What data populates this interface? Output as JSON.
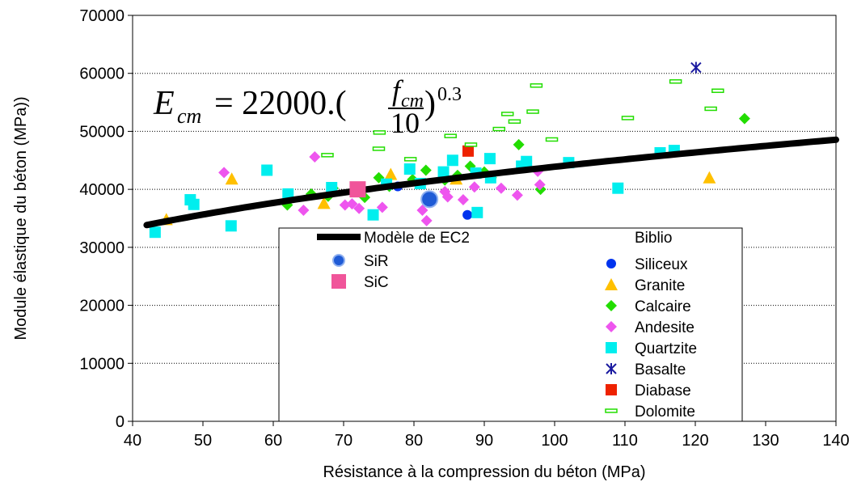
{
  "chart_data": {
    "type": "scatter",
    "xlabel": "Résistance à la compression du béton (MPa)",
    "ylabel": "Module élastique du béton (MPa))",
    "xlim": [
      40,
      140
    ],
    "ylim": [
      0,
      70000
    ],
    "xticks": [
      40,
      50,
      60,
      70,
      80,
      90,
      100,
      110,
      120,
      130,
      140
    ],
    "yticks": [
      0,
      10000,
      20000,
      30000,
      40000,
      50000,
      60000,
      70000
    ],
    "grid": "horizontal dotted",
    "formula": {
      "lhs": "E",
      "lhs_sub": "cm",
      "eq": "= 22000.(",
      "num": "f",
      "num_sub": "cm",
      "den": "10",
      "close": ")",
      "exp": "0.3"
    },
    "legend": {
      "placement": "bottom-center",
      "left_heading": "Modèle de EC2",
      "right_heading": "Biblio"
    },
    "model": {
      "name": "Modèle de EC2",
      "x_range": [
        42,
        140
      ],
      "coef": 22000,
      "exponent": 0.3,
      "color": "#000000"
    },
    "series": [
      {
        "name": "SiR",
        "marker": "circle-big",
        "color": "#1f5bd6",
        "points": [
          [
            82.2,
            38300
          ]
        ]
      },
      {
        "name": "SiC",
        "marker": "square-big",
        "color": "#f0559a",
        "points": [
          [
            72,
            40000
          ]
        ]
      },
      {
        "name": "Siliceux",
        "marker": "circle",
        "color": "#0033ee",
        "points": [
          [
            77.7,
            40500
          ],
          [
            87.6,
            35600
          ]
        ]
      },
      {
        "name": "Granite",
        "marker": "triangle",
        "color": "#ffc000",
        "points": [
          [
            44.8,
            34800
          ],
          [
            54.1,
            41800
          ],
          [
            67.2,
            37600
          ],
          [
            76.7,
            42600
          ],
          [
            86,
            41800
          ],
          [
            122,
            42000
          ]
        ]
      },
      {
        "name": "Calcaire",
        "marker": "diamond",
        "color": "#22dd00",
        "points": [
          [
            62,
            37300
          ],
          [
            65.4,
            39200
          ],
          [
            67.8,
            38800
          ],
          [
            68.5,
            40200
          ],
          [
            73,
            38600
          ],
          [
            75,
            42000
          ],
          [
            76.5,
            40500
          ],
          [
            79.8,
            41700
          ],
          [
            81.7,
            43300
          ],
          [
            84.4,
            41600
          ],
          [
            86.2,
            42400
          ],
          [
            88,
            44000
          ],
          [
            90,
            43000
          ],
          [
            91,
            42000
          ],
          [
            94.9,
            47700
          ],
          [
            98,
            40000
          ],
          [
            127,
            52200
          ]
        ]
      },
      {
        "name": "Andesite",
        "marker": "diamond",
        "color": "#ee55ee",
        "points": [
          [
            53,
            42900
          ],
          [
            64.3,
            36400
          ],
          [
            65.9,
            45600
          ],
          [
            70.2,
            37300
          ],
          [
            71.2,
            37500
          ],
          [
            72.2,
            36700
          ],
          [
            75.5,
            36900
          ],
          [
            81.2,
            36400
          ],
          [
            81.8,
            34600
          ],
          [
            84.4,
            39600
          ],
          [
            84.8,
            38700
          ],
          [
            87,
            38200
          ],
          [
            88.6,
            40400
          ],
          [
            92.4,
            40200
          ],
          [
            94.7,
            39000
          ],
          [
            97.6,
            43100
          ],
          [
            97.9,
            40800
          ]
        ]
      },
      {
        "name": "Quartzite",
        "marker": "square",
        "color": "#00eeee",
        "points": [
          [
            43.2,
            32600
          ],
          [
            48.2,
            38200
          ],
          [
            48.7,
            37400
          ],
          [
            54,
            33700
          ],
          [
            59.1,
            43300
          ],
          [
            62.1,
            39200
          ],
          [
            68.3,
            40300
          ],
          [
            74.2,
            35600
          ],
          [
            76.1,
            40900
          ],
          [
            79.4,
            43500
          ],
          [
            80.9,
            41000
          ],
          [
            84.2,
            43000
          ],
          [
            85.5,
            45000
          ],
          [
            88.8,
            42800
          ],
          [
            89,
            36000
          ],
          [
            90.8,
            45300
          ],
          [
            90.9,
            42000
          ],
          [
            95.3,
            44000
          ],
          [
            96,
            44800
          ],
          [
            102,
            44600
          ],
          [
            109,
            40200
          ],
          [
            115,
            46300
          ],
          [
            117,
            46700
          ]
        ]
      },
      {
        "name": "Basalte",
        "marker": "asterisk",
        "color": "#1a1aa0",
        "points": [
          [
            120.1,
            61000
          ]
        ]
      },
      {
        "name": "Diabase",
        "marker": "square",
        "color": "#ee2200",
        "points": [
          [
            87.7,
            46600
          ]
        ]
      },
      {
        "name": "Dolomite",
        "marker": "dash",
        "color": "#22dd00",
        "points": [
          [
            67.7,
            45900
          ],
          [
            75,
            47000
          ],
          [
            75.1,
            49800
          ],
          [
            79.5,
            45200
          ],
          [
            85.2,
            49200
          ],
          [
            88.1,
            47700
          ],
          [
            92.1,
            50400
          ],
          [
            93.3,
            53000
          ],
          [
            94.3,
            51700
          ],
          [
            96.9,
            53400
          ],
          [
            97.4,
            57900
          ],
          [
            99.6,
            48600
          ],
          [
            110.4,
            52300
          ],
          [
            117.2,
            58600
          ],
          [
            122.2,
            53900
          ],
          [
            123.2,
            57000
          ]
        ]
      }
    ]
  }
}
